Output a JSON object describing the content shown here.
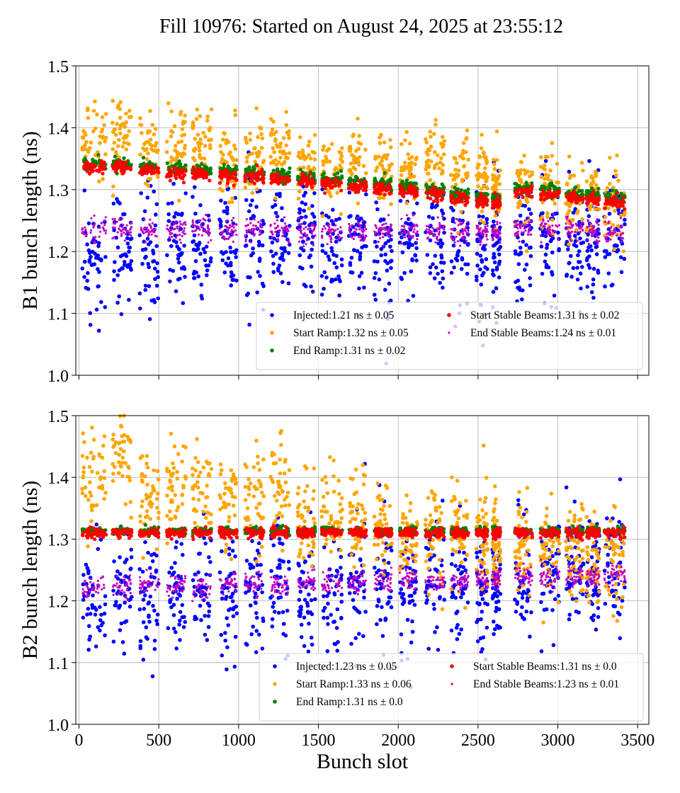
{
  "title": "Fill 10976: Started on August 24, 2025 at 23:55:12",
  "chart_data": [
    {
      "type": "scatter",
      "ylabel": "B1 bunch length (ns)",
      "xlabel": "",
      "xlim": [
        -20,
        3570
      ],
      "ylim": [
        1.0,
        1.5
      ],
      "xticks": [
        "0",
        "500",
        "1000",
        "1500",
        "2000",
        "2500",
        "3000",
        "3500"
      ],
      "yticks": [
        "1.0",
        "1.1",
        "1.2",
        "1.3",
        "1.4",
        "1.5"
      ],
      "show_xtick_labels": false,
      "grid": true,
      "legend_position": "lower-right",
      "trains": [
        [
          20,
          170
        ],
        [
          210,
          330
        ],
        [
          380,
          500
        ],
        [
          550,
          670
        ],
        [
          710,
          830
        ],
        [
          880,
          990
        ],
        [
          1040,
          1160
        ],
        [
          1200,
          1320
        ],
        [
          1370,
          1480
        ],
        [
          1520,
          1650
        ],
        [
          1690,
          1800
        ],
        [
          1850,
          1960
        ],
        [
          2010,
          2120
        ],
        [
          2170,
          2290
        ],
        [
          2330,
          2440
        ],
        [
          2490,
          2560
        ],
        [
          2590,
          2640
        ],
        [
          2730,
          2840
        ],
        [
          2890,
          3010
        ],
        [
          3050,
          3160
        ],
        [
          3180,
          3260
        ],
        [
          3290,
          3420
        ]
      ],
      "series": [
        {
          "name": "Injected:1.21 ns ± 0.05",
          "color": "#0000ff",
          "spread": 0.045,
          "means": [
            1.19,
            1.21,
            1.2,
            1.21,
            1.2,
            1.21,
            1.21,
            1.22,
            1.21,
            1.2,
            1.22,
            1.2,
            1.21,
            1.22,
            1.21,
            1.2,
            1.2,
            1.21,
            1.21,
            1.22,
            1.22,
            1.22
          ]
        },
        {
          "name": "Start Ramp:1.32 ns ± 0.05",
          "color": "#ffa500",
          "spread": 0.03,
          "means": [
            1.38,
            1.39,
            1.37,
            1.37,
            1.37,
            1.35,
            1.35,
            1.36,
            1.33,
            1.33,
            1.34,
            1.33,
            1.33,
            1.34,
            1.32,
            1.31,
            1.3,
            1.3,
            1.3,
            1.29,
            1.29,
            1.28
          ]
        },
        {
          "name": "End Ramp:1.31 ns ± 0.02",
          "color": "#008000",
          "spread": 0.005,
          "means": [
            1.342,
            1.343,
            1.338,
            1.334,
            1.332,
            1.33,
            1.327,
            1.324,
            1.32,
            1.317,
            1.311,
            1.309,
            1.305,
            1.3,
            1.292,
            1.288,
            1.285,
            1.302,
            1.298,
            1.292,
            1.291,
            1.287
          ]
        },
        {
          "name": "Start Stable Beams:1.31 ns ± 0.02",
          "color": "#ff0000",
          "spread": 0.005,
          "means": [
            1.335,
            1.336,
            1.331,
            1.327,
            1.325,
            1.322,
            1.32,
            1.317,
            1.313,
            1.31,
            1.304,
            1.302,
            1.298,
            1.293,
            1.285,
            1.281,
            1.278,
            1.296,
            1.291,
            1.285,
            1.284,
            1.28
          ]
        },
        {
          "name": "End Stable Beams:1.24 ns ± 0.01",
          "color": "#c000c0",
          "spread": 0.009,
          "means": [
            1.235,
            1.235,
            1.234,
            1.235,
            1.236,
            1.233,
            1.234,
            1.235,
            1.233,
            1.232,
            1.233,
            1.234,
            1.235,
            1.232,
            1.232,
            1.23,
            1.23,
            1.238,
            1.238,
            1.236,
            1.233,
            1.232
          ]
        }
      ]
    },
    {
      "type": "scatter",
      "ylabel": "B2 bunch length (ns)",
      "xlabel": "Bunch slot",
      "xlim": [
        -20,
        3570
      ],
      "ylim": [
        1.0,
        1.5
      ],
      "xticks": [
        "0",
        "500",
        "1000",
        "1500",
        "2000",
        "2500",
        "3000",
        "3500"
      ],
      "yticks": [
        "1.0",
        "1.1",
        "1.2",
        "1.3",
        "1.4",
        "1.5"
      ],
      "show_xtick_labels": true,
      "grid": true,
      "legend_position": "lower-right",
      "trains": [
        [
          20,
          170
        ],
        [
          210,
          330
        ],
        [
          380,
          500
        ],
        [
          550,
          670
        ],
        [
          710,
          830
        ],
        [
          880,
          990
        ],
        [
          1040,
          1160
        ],
        [
          1200,
          1320
        ],
        [
          1370,
          1480
        ],
        [
          1520,
          1650
        ],
        [
          1690,
          1800
        ],
        [
          1850,
          1960
        ],
        [
          2010,
          2120
        ],
        [
          2170,
          2290
        ],
        [
          2330,
          2440
        ],
        [
          2490,
          2560
        ],
        [
          2590,
          2640
        ],
        [
          2730,
          2840
        ],
        [
          2890,
          3010
        ],
        [
          3050,
          3160
        ],
        [
          3180,
          3260
        ],
        [
          3290,
          3420
        ]
      ],
      "series": [
        {
          "name": "Injected:1.23 ns ± 0.05",
          "color": "#0000ff",
          "spread": 0.045,
          "means": [
            1.2,
            1.22,
            1.2,
            1.21,
            1.22,
            1.21,
            1.22,
            1.24,
            1.21,
            1.21,
            1.23,
            1.22,
            1.23,
            1.24,
            1.23,
            1.22,
            1.23,
            1.24,
            1.25,
            1.25,
            1.25,
            1.25
          ]
        },
        {
          "name": "Start Ramp:1.33 ns ± 0.06",
          "color": "#ffa500",
          "spread": 0.04,
          "means": [
            1.4,
            1.42,
            1.37,
            1.38,
            1.38,
            1.36,
            1.36,
            1.38,
            1.33,
            1.34,
            1.33,
            1.32,
            1.3,
            1.31,
            1.31,
            1.3,
            1.29,
            1.28,
            1.29,
            1.28,
            1.27,
            1.27
          ]
        },
        {
          "name": "End Ramp:1.31 ns ± 0.0",
          "color": "#008000",
          "spread": 0.003,
          "means": [
            1.313,
            1.313,
            1.313,
            1.313,
            1.313,
            1.313,
            1.313,
            1.313,
            1.313,
            1.313,
            1.313,
            1.313,
            1.313,
            1.313,
            1.313,
            1.313,
            1.313,
            1.313,
            1.313,
            1.313,
            1.313,
            1.313
          ]
        },
        {
          "name": "Start Stable Beams:1.31 ns ± 0.0",
          "color": "#ff0000",
          "spread": 0.004,
          "means": [
            1.31,
            1.31,
            1.31,
            1.31,
            1.31,
            1.31,
            1.31,
            1.31,
            1.31,
            1.31,
            1.31,
            1.31,
            1.31,
            1.31,
            1.31,
            1.31,
            1.31,
            1.31,
            1.31,
            1.31,
            1.31,
            1.31
          ]
        },
        {
          "name": "End Stable Beams:1.23 ns ± 0.01",
          "color": "#c000c0",
          "spread": 0.009,
          "means": [
            1.22,
            1.222,
            1.225,
            1.224,
            1.223,
            1.228,
            1.227,
            1.225,
            1.228,
            1.23,
            1.232,
            1.23,
            1.235,
            1.232,
            1.235,
            1.236,
            1.234,
            1.238,
            1.24,
            1.238,
            1.24,
            1.24
          ]
        }
      ]
    }
  ]
}
